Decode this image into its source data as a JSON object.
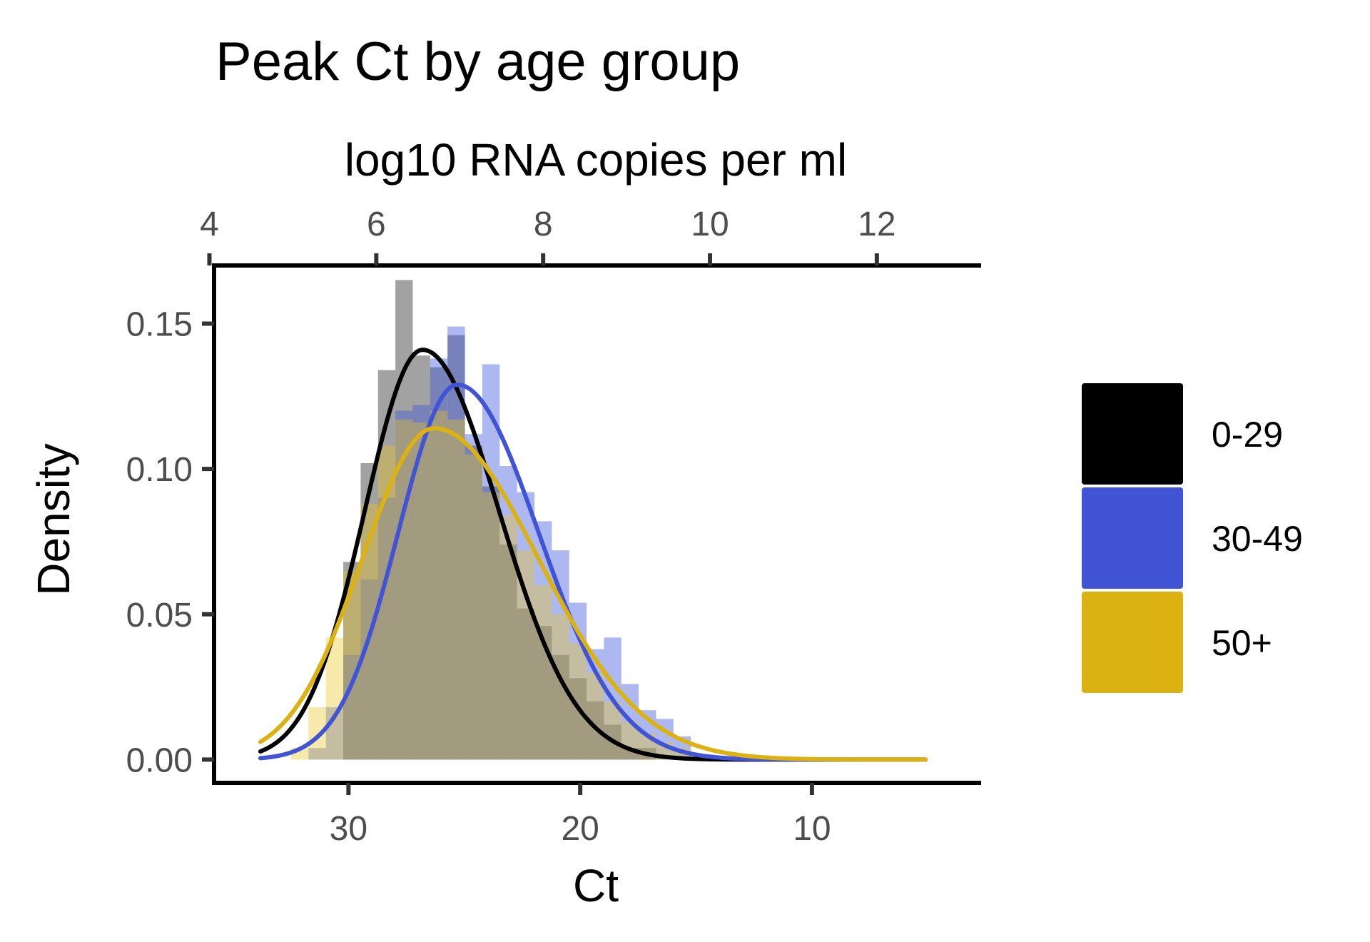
{
  "chart_data": {
    "type": "histogram-density",
    "title": "Peak Ct by age group",
    "xlabel": "Ct",
    "ylabel": "Density",
    "secondary_xlabel": "log10 RNA copies per ml",
    "x_reversed": true,
    "xlim": [
      35.8,
      2.7
    ],
    "ylim": [
      -0.008,
      0.17
    ],
    "x_ticks": [
      30,
      20,
      10
    ],
    "x_tick_labels": [
      "30",
      "20",
      "10"
    ],
    "y_ticks": [
      0,
      0.05,
      0.1,
      0.15
    ],
    "y_tick_labels": [
      "0.00",
      "0.05",
      "0.10",
      "0.15"
    ],
    "secondary_x_ticks": [
      4,
      6,
      8,
      10,
      12
    ],
    "secondary_x_tick_labels": [
      "4",
      "6",
      "8",
      "10",
      "12"
    ],
    "secondary_axis_map": {
      "ct_at_log10_4": 36.0,
      "ct_per_log10": 3.6
    },
    "grid": false,
    "legend_position": "right",
    "bin_width": 0.75,
    "series": [
      {
        "name": "0-29",
        "color": "#000000",
        "hist_bins": [
          {
            "x": 30.6,
            "y": 0.0
          },
          {
            "x": 29.85,
            "y": 0.068
          },
          {
            "x": 29.1,
            "y": 0.102
          },
          {
            "x": 28.35,
            "y": 0.134
          },
          {
            "x": 27.6,
            "y": 0.165
          },
          {
            "x": 26.85,
            "y": 0.139
          },
          {
            "x": 26.1,
            "y": 0.135
          },
          {
            "x": 25.35,
            "y": 0.146
          },
          {
            "x": 24.6,
            "y": 0.108
          },
          {
            "x": 23.85,
            "y": 0.094
          },
          {
            "x": 23.1,
            "y": 0.074
          },
          {
            "x": 22.35,
            "y": 0.052
          },
          {
            "x": 21.6,
            "y": 0.046
          },
          {
            "x": 20.85,
            "y": 0.036
          },
          {
            "x": 20.1,
            "y": 0.028
          },
          {
            "x": 19.35,
            "y": 0.02
          },
          {
            "x": 18.6,
            "y": 0.012
          },
          {
            "x": 17.85,
            "y": 0.004
          },
          {
            "x": 17.1,
            "y": 0.004
          }
        ],
        "density_params": {
          "mode_ct": 26.8,
          "peak": 0.141,
          "sd_left": 2.5,
          "sd_right": 3.3,
          "x_start": 33.8
        }
      },
      {
        "name": "30-49",
        "color": "#4154d6",
        "hist_bins": [
          {
            "x": 31.35,
            "y": 0.004
          },
          {
            "x": 30.6,
            "y": 0.018
          },
          {
            "x": 29.85,
            "y": 0.036
          },
          {
            "x": 29.1,
            "y": 0.062
          },
          {
            "x": 28.35,
            "y": 0.09
          },
          {
            "x": 27.6,
            "y": 0.12
          },
          {
            "x": 26.85,
            "y": 0.122
          },
          {
            "x": 26.1,
            "y": 0.138
          },
          {
            "x": 25.35,
            "y": 0.149
          },
          {
            "x": 24.6,
            "y": 0.112
          },
          {
            "x": 23.85,
            "y": 0.136
          },
          {
            "x": 23.1,
            "y": 0.101
          },
          {
            "x": 22.35,
            "y": 0.092
          },
          {
            "x": 21.6,
            "y": 0.082
          },
          {
            "x": 20.85,
            "y": 0.072
          },
          {
            "x": 20.1,
            "y": 0.054
          },
          {
            "x": 19.35,
            "y": 0.038
          },
          {
            "x": 18.6,
            "y": 0.042
          },
          {
            "x": 17.85,
            "y": 0.026
          },
          {
            "x": 17.1,
            "y": 0.017
          },
          {
            "x": 16.35,
            "y": 0.014
          },
          {
            "x": 15.6,
            "y": 0.008
          }
        ],
        "density_params": {
          "mode_ct": 25.3,
          "peak": 0.129,
          "sd_left": 2.55,
          "sd_right": 3.5,
          "x_start": 33.8
        }
      },
      {
        "name": "50+",
        "color": "#dbb212",
        "hist_bins": [
          {
            "x": 32.1,
            "y": 0.004
          },
          {
            "x": 31.35,
            "y": 0.018
          },
          {
            "x": 30.6,
            "y": 0.042
          },
          {
            "x": 29.85,
            "y": 0.065
          },
          {
            "x": 29.1,
            "y": 0.088
          },
          {
            "x": 28.35,
            "y": 0.108
          },
          {
            "x": 27.6,
            "y": 0.117
          },
          {
            "x": 26.85,
            "y": 0.116
          },
          {
            "x": 26.1,
            "y": 0.12
          },
          {
            "x": 25.35,
            "y": 0.117
          },
          {
            "x": 24.6,
            "y": 0.105
          },
          {
            "x": 23.85,
            "y": 0.092
          },
          {
            "x": 23.1,
            "y": 0.084
          },
          {
            "x": 22.35,
            "y": 0.072
          },
          {
            "x": 21.6,
            "y": 0.06
          },
          {
            "x": 20.85,
            "y": 0.05
          },
          {
            "x": 20.1,
            "y": 0.04
          },
          {
            "x": 19.35,
            "y": 0.03
          },
          {
            "x": 18.6,
            "y": 0.02
          },
          {
            "x": 17.85,
            "y": 0.013
          },
          {
            "x": 17.1,
            "y": 0.009
          },
          {
            "x": 16.35,
            "y": 0.006
          },
          {
            "x": 15.6,
            "y": 0.004
          }
        ],
        "density_params": {
          "mode_ct": 26.3,
          "peak": 0.114,
          "sd_left": 3.1,
          "sd_right": 4.5,
          "x_start": 33.8
        }
      }
    ],
    "density_x_end": 5.1
  }
}
